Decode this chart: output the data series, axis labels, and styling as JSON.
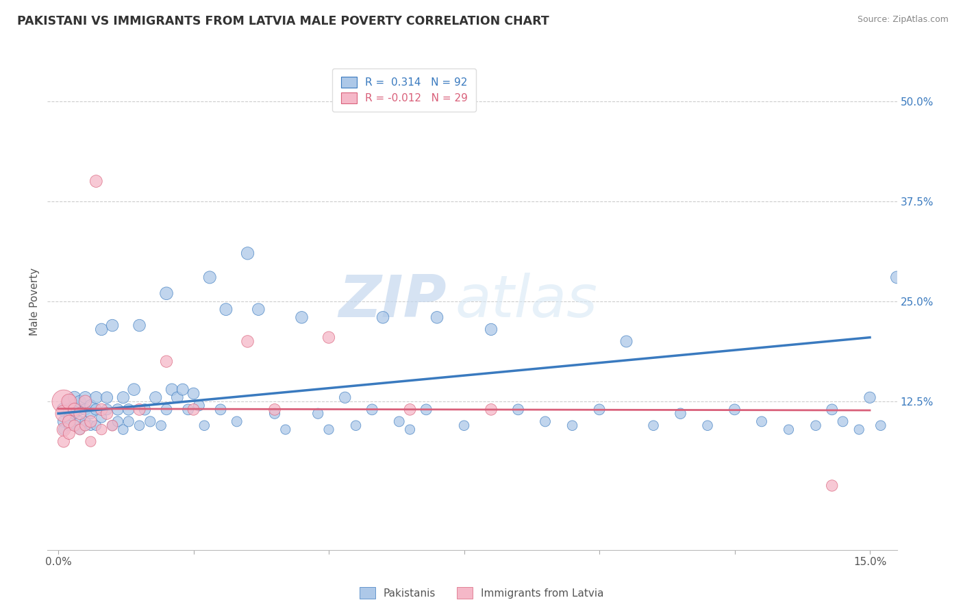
{
  "title": "PAKISTANI VS IMMIGRANTS FROM LATVIA MALE POVERTY CORRELATION CHART",
  "source": "Source: ZipAtlas.com",
  "ylabel": "Male Poverty",
  "xlim": [
    -0.002,
    0.155
  ],
  "ylim": [
    -0.06,
    0.56
  ],
  "y_ticks_right": [
    0.125,
    0.25,
    0.375,
    0.5
  ],
  "y_tick_labels_right": [
    "12.5%",
    "25.0%",
    "37.5%",
    "50.0%"
  ],
  "blue_R": 0.314,
  "blue_N": 92,
  "pink_R": -0.012,
  "pink_N": 29,
  "blue_color": "#adc8e8",
  "pink_color": "#f5b8c8",
  "blue_line_color": "#3a7abf",
  "pink_line_color": "#d9607a",
  "legend_label_blue": "Pakistanis",
  "legend_label_pink": "Immigrants from Latvia",
  "watermark_zip": "ZIP",
  "watermark_atlas": "atlas",
  "background_color": "#ffffff",
  "grid_color": "#cccccc",
  "blue_trend_x0": 0.0,
  "blue_trend_y0": 0.11,
  "blue_trend_x1": 0.15,
  "blue_trend_y1": 0.205,
  "pink_trend_x0": 0.0,
  "pink_trend_y0": 0.116,
  "pink_trend_x1": 0.15,
  "pink_trend_y1": 0.114,
  "blue_x": [
    0.001,
    0.001,
    0.001,
    0.002,
    0.002,
    0.002,
    0.002,
    0.003,
    0.003,
    0.003,
    0.003,
    0.004,
    0.004,
    0.004,
    0.004,
    0.005,
    0.005,
    0.005,
    0.005,
    0.006,
    0.006,
    0.006,
    0.007,
    0.007,
    0.007,
    0.008,
    0.008,
    0.009,
    0.009,
    0.01,
    0.01,
    0.011,
    0.011,
    0.012,
    0.012,
    0.013,
    0.013,
    0.014,
    0.015,
    0.015,
    0.016,
    0.017,
    0.018,
    0.019,
    0.02,
    0.02,
    0.021,
    0.022,
    0.023,
    0.024,
    0.025,
    0.026,
    0.027,
    0.028,
    0.03,
    0.031,
    0.033,
    0.035,
    0.037,
    0.04,
    0.042,
    0.045,
    0.048,
    0.05,
    0.053,
    0.055,
    0.058,
    0.06,
    0.063,
    0.065,
    0.068,
    0.07,
    0.075,
    0.08,
    0.085,
    0.09,
    0.095,
    0.1,
    0.105,
    0.11,
    0.115,
    0.12,
    0.125,
    0.13,
    0.135,
    0.14,
    0.143,
    0.145,
    0.148,
    0.15,
    0.152,
    0.155
  ],
  "blue_y": [
    0.115,
    0.1,
    0.09,
    0.125,
    0.105,
    0.115,
    0.095,
    0.12,
    0.11,
    0.13,
    0.095,
    0.115,
    0.1,
    0.125,
    0.09,
    0.115,
    0.1,
    0.13,
    0.095,
    0.12,
    0.095,
    0.11,
    0.13,
    0.095,
    0.115,
    0.215,
    0.105,
    0.13,
    0.115,
    0.22,
    0.095,
    0.115,
    0.1,
    0.13,
    0.09,
    0.115,
    0.1,
    0.14,
    0.22,
    0.095,
    0.115,
    0.1,
    0.13,
    0.095,
    0.26,
    0.115,
    0.14,
    0.13,
    0.14,
    0.115,
    0.135,
    0.12,
    0.095,
    0.28,
    0.115,
    0.24,
    0.1,
    0.31,
    0.24,
    0.11,
    0.09,
    0.23,
    0.11,
    0.09,
    0.13,
    0.095,
    0.115,
    0.23,
    0.1,
    0.09,
    0.115,
    0.23,
    0.095,
    0.215,
    0.115,
    0.1,
    0.095,
    0.115,
    0.2,
    0.095,
    0.11,
    0.095,
    0.115,
    0.1,
    0.09,
    0.095,
    0.115,
    0.1,
    0.09,
    0.13,
    0.095,
    0.28
  ],
  "blue_sizes": [
    200,
    150,
    120,
    180,
    130,
    150,
    120,
    160,
    140,
    170,
    120,
    150,
    130,
    160,
    110,
    140,
    120,
    160,
    110,
    150,
    110,
    130,
    160,
    110,
    140,
    160,
    120,
    150,
    130,
    160,
    110,
    140,
    120,
    155,
    110,
    140,
    120,
    160,
    160,
    110,
    140,
    120,
    155,
    110,
    180,
    130,
    155,
    145,
    150,
    130,
    145,
    130,
    110,
    170,
    130,
    165,
    115,
    175,
    160,
    120,
    105,
    160,
    120,
    105,
    140,
    110,
    130,
    160,
    115,
    105,
    130,
    160,
    110,
    155,
    130,
    115,
    110,
    130,
    150,
    110,
    125,
    110,
    130,
    115,
    105,
    110,
    130,
    115,
    105,
    140,
    110,
    165
  ],
  "pink_x": [
    0.001,
    0.001,
    0.001,
    0.001,
    0.002,
    0.002,
    0.002,
    0.003,
    0.003,
    0.004,
    0.004,
    0.005,
    0.005,
    0.006,
    0.006,
    0.007,
    0.008,
    0.008,
    0.009,
    0.01,
    0.015,
    0.02,
    0.025,
    0.035,
    0.04,
    0.05,
    0.065,
    0.08,
    0.143
  ],
  "pink_y": [
    0.125,
    0.11,
    0.09,
    0.075,
    0.125,
    0.1,
    0.085,
    0.115,
    0.095,
    0.11,
    0.09,
    0.125,
    0.095,
    0.1,
    0.075,
    0.4,
    0.115,
    0.09,
    0.11,
    0.095,
    0.115,
    0.175,
    0.115,
    0.2,
    0.115,
    0.205,
    0.115,
    0.115,
    0.02
  ],
  "pink_sizes": [
    600,
    300,
    200,
    150,
    250,
    180,
    150,
    180,
    140,
    160,
    130,
    175,
    130,
    155,
    120,
    165,
    155,
    125,
    155,
    130,
    150,
    155,
    145,
    160,
    145,
    155,
    145,
    145,
    140
  ]
}
